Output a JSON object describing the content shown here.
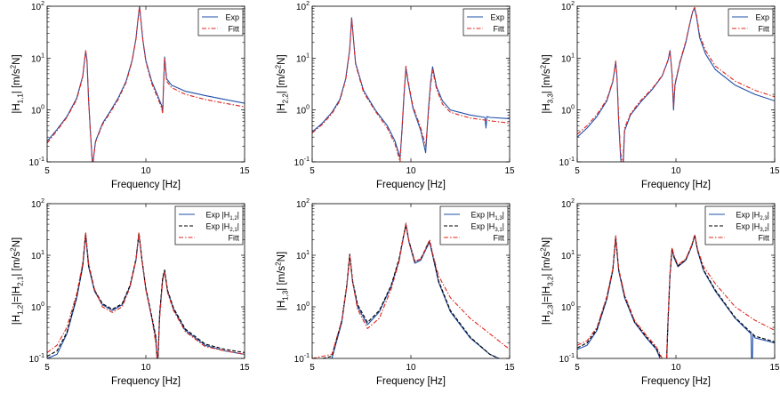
{
  "figure": {
    "x_axis_label": "Frequency [Hz]",
    "x_ticks": [
      5,
      10,
      15
    ],
    "y_ticks": [
      "10-1",
      "100",
      "101",
      "102"
    ]
  },
  "chart_data": [
    {
      "type": "line",
      "title": "",
      "xlabel": "Frequency [Hz]",
      "ylabel": "|H1,1| [m/s2N]",
      "xlim": [
        5,
        15
      ],
      "ylim": [
        0.1,
        100
      ],
      "yscale": "log",
      "grid": false,
      "legend_position": "top-right",
      "series": [
        {
          "name": "Exp",
          "color": "#1f4fa8",
          "dash": "solid",
          "x": [
            5,
            5.5,
            6,
            6.5,
            6.8,
            6.95,
            7.02,
            7.1,
            7.2,
            7.3,
            7.45,
            7.8,
            8.2,
            8.6,
            9,
            9.3,
            9.5,
            9.6,
            9.68,
            9.75,
            9.85,
            10,
            10.3,
            10.6,
            10.8,
            10.85,
            10.9,
            10.95,
            11.05,
            11.3,
            12,
            13,
            14,
            15
          ],
          "y": [
            0.25,
            0.42,
            0.75,
            1.7,
            4.5,
            13.5,
            9.0,
            1.6,
            0.35,
            0.085,
            0.25,
            0.55,
            0.95,
            1.7,
            3.6,
            9.0,
            24,
            55,
            100,
            55,
            22,
            9,
            3.5,
            1.9,
            1.2,
            0.9,
            3.5,
            10.5,
            4.0,
            3.0,
            2.3,
            1.9,
            1.6,
            1.35
          ]
        },
        {
          "name": "Fitt",
          "color": "#e0261c",
          "dash": "dashdot",
          "x": [
            5,
            5.5,
            6,
            6.5,
            6.8,
            6.95,
            7.02,
            7.1,
            7.2,
            7.3,
            7.45,
            7.8,
            8.2,
            8.6,
            9,
            9.3,
            9.5,
            9.6,
            9.68,
            9.75,
            9.85,
            10,
            10.3,
            10.6,
            10.8,
            10.85,
            10.9,
            10.95,
            11.05,
            11.3,
            12,
            13,
            14,
            15
          ],
          "y": [
            0.23,
            0.4,
            0.72,
            1.6,
            4.3,
            14,
            9.5,
            1.5,
            0.33,
            0.08,
            0.24,
            0.52,
            0.9,
            1.6,
            3.4,
            8.6,
            23,
            54,
            100,
            54,
            21,
            8.5,
            3.2,
            1.7,
            1.1,
            0.85,
            3.2,
            10.0,
            3.6,
            2.7,
            2.0,
            1.6,
            1.35,
            1.15
          ]
        }
      ]
    },
    {
      "type": "line",
      "title": "",
      "xlabel": "Frequency [Hz]",
      "ylabel": "|H2,2| [m/s2N]",
      "xlim": [
        5,
        15
      ],
      "ylim": [
        0.1,
        100
      ],
      "yscale": "log",
      "grid": false,
      "legend_position": "top-right",
      "series": [
        {
          "name": "Exp",
          "color": "#1f4fa8",
          "dash": "solid",
          "x": [
            5,
            5.5,
            6,
            6.4,
            6.7,
            6.9,
            7.0,
            7.2,
            7.6,
            8.2,
            8.8,
            9.2,
            9.45,
            9.55,
            9.65,
            9.75,
            9.85,
            10.1,
            10.5,
            10.75,
            10.9,
            11.0,
            11.1,
            11.3,
            11.6,
            12,
            13,
            13.75,
            13.8,
            13.85,
            14,
            15
          ],
          "y": [
            0.38,
            0.55,
            0.9,
            1.6,
            4,
            15,
            60,
            8,
            2.4,
            1.0,
            0.5,
            0.25,
            0.12,
            0.4,
            1.8,
            6.5,
            3.5,
            1.1,
            0.4,
            0.15,
            1.2,
            3.5,
            6.8,
            2.8,
            1.5,
            1.0,
            0.8,
            0.72,
            0.45,
            0.75,
            0.72,
            0.68
          ]
        },
        {
          "name": "Fitt",
          "color": "#e0261c",
          "dash": "dashdot",
          "x": [
            5,
            5.5,
            6,
            6.4,
            6.7,
            6.9,
            7.0,
            7.2,
            7.6,
            8.2,
            8.8,
            9.2,
            9.45,
            9.55,
            9.65,
            9.75,
            9.85,
            10.1,
            10.5,
            10.75,
            10.9,
            11.0,
            11.1,
            11.3,
            11.6,
            12,
            13,
            14,
            15
          ],
          "y": [
            0.36,
            0.52,
            0.85,
            1.5,
            3.8,
            14,
            58,
            7.5,
            2.2,
            0.95,
            0.45,
            0.22,
            0.1,
            0.45,
            2.0,
            7.0,
            3.8,
            1.2,
            0.45,
            0.2,
            1.0,
            3.0,
            6.0,
            2.5,
            1.3,
            0.9,
            0.7,
            0.62,
            0.56
          ]
        }
      ]
    },
    {
      "type": "line",
      "title": "",
      "xlabel": "Frequency [Hz]",
      "ylabel": "|H3,3| [m/s2N]",
      "xlim": [
        5,
        15
      ],
      "ylim": [
        0.1,
        100
      ],
      "yscale": "log",
      "grid": false,
      "legend_position": "top-right",
      "series": [
        {
          "name": "Exp",
          "color": "#1f4fa8",
          "dash": "solid",
          "x": [
            5,
            5.5,
            6,
            6.5,
            6.8,
            6.95,
            7.02,
            7.1,
            7.2,
            7.3,
            7.4,
            7.7,
            8.2,
            8.8,
            9.3,
            9.6,
            9.7,
            9.8,
            9.88,
            9.95,
            10.2,
            10.5,
            10.7,
            10.85,
            10.95,
            11.05,
            11.2,
            11.5,
            12,
            13,
            14,
            15
          ],
          "y": [
            0.3,
            0.45,
            0.75,
            1.5,
            3.5,
            8.5,
            4,
            0.6,
            0.12,
            0.05,
            0.4,
            0.8,
            1.4,
            2.5,
            4.5,
            9,
            14,
            5,
            1.0,
            3.0,
            8,
            20,
            45,
            80,
            90,
            60,
            25,
            12,
            6,
            3,
            2,
            1.5
          ]
        },
        {
          "name": "Fitt",
          "color": "#e0261c",
          "dash": "dashdot",
          "x": [
            5,
            5.5,
            6,
            6.5,
            6.8,
            6.95,
            7.02,
            7.1,
            7.2,
            7.3,
            7.4,
            7.7,
            8.2,
            8.8,
            9.3,
            9.6,
            9.7,
            9.8,
            9.88,
            9.95,
            10.2,
            10.5,
            10.7,
            10.85,
            10.95,
            11.05,
            11.2,
            11.5,
            12,
            13,
            14,
            15
          ],
          "y": [
            0.34,
            0.5,
            0.82,
            1.6,
            3.6,
            8.8,
            4.2,
            0.7,
            0.15,
            0.08,
            0.45,
            0.85,
            1.5,
            2.6,
            4.6,
            9.2,
            14,
            5.2,
            1.2,
            3.2,
            8.5,
            21,
            46,
            82,
            95,
            65,
            28,
            14,
            7,
            3.6,
            2.4,
            1.8
          ]
        }
      ]
    },
    {
      "type": "line",
      "title": "",
      "xlabel": "Frequency [Hz]",
      "ylabel": "|H1,2|=|H2,1| [m/s2N]",
      "xlim": [
        5,
        15
      ],
      "ylim": [
        0.1,
        100
      ],
      "yscale": "log",
      "grid": false,
      "legend_position": "top-right",
      "series": [
        {
          "name": "Exp |H1,2|",
          "color": "#1f4fa8",
          "dash": "solid",
          "x": [
            5,
            5.5,
            6,
            6.5,
            6.8,
            6.95,
            7.1,
            7.4,
            7.8,
            8.3,
            8.8,
            9.2,
            9.5,
            9.65,
            9.8,
            10.0,
            10.3,
            10.5,
            10.6,
            10.7,
            10.85,
            10.95,
            11.1,
            11.4,
            12,
            13,
            14,
            15
          ],
          "y": [
            0.1,
            0.12,
            0.3,
            1.5,
            6,
            25,
            6,
            2.0,
            1.1,
            0.85,
            1.1,
            2.5,
            8,
            26,
            8,
            2.2,
            0.6,
            0.25,
            0.06,
            0.7,
            3.5,
            5,
            2.0,
            0.9,
            0.35,
            0.18,
            0.14,
            0.12
          ]
        },
        {
          "name": "Exp |H2,1|",
          "color": "#000000",
          "dash": "dashed",
          "x": [
            5,
            5.5,
            6,
            6.5,
            6.8,
            6.95,
            7.1,
            7.4,
            7.8,
            8.3,
            8.8,
            9.2,
            9.5,
            9.65,
            9.8,
            10.0,
            10.3,
            10.5,
            10.6,
            10.7,
            10.85,
            10.95,
            11.1,
            11.4,
            12,
            13,
            14,
            15
          ],
          "y": [
            0.11,
            0.14,
            0.32,
            1.6,
            6.5,
            27,
            6.5,
            2.1,
            1.15,
            0.9,
            1.15,
            2.6,
            8.5,
            27,
            8.4,
            2.3,
            0.65,
            0.27,
            0.07,
            0.75,
            3.7,
            5.2,
            2.1,
            0.95,
            0.37,
            0.19,
            0.15,
            0.13
          ]
        },
        {
          "name": "Fitt",
          "color": "#e0261c",
          "dash": "dashdot",
          "x": [
            5,
            5.5,
            6,
            6.5,
            6.8,
            6.95,
            7.1,
            7.4,
            7.8,
            8.3,
            8.8,
            9.2,
            9.5,
            9.65,
            9.8,
            10.0,
            10.3,
            10.5,
            10.6,
            10.7,
            10.85,
            10.95,
            11.1,
            11.4,
            12,
            13,
            14,
            15
          ],
          "y": [
            0.13,
            0.18,
            0.4,
            1.8,
            7,
            28,
            7,
            2.2,
            1.0,
            0.78,
            1.0,
            2.4,
            8,
            28,
            8,
            2.1,
            0.6,
            0.2,
            0.08,
            0.6,
            3.2,
            4.8,
            1.9,
            0.85,
            0.33,
            0.17,
            0.14,
            0.12
          ]
        }
      ]
    },
    {
      "type": "line",
      "title": "",
      "xlabel": "Frequency [Hz]",
      "ylabel": "|H1,3| [m/s2N]",
      "xlim": [
        5,
        15
      ],
      "ylim": [
        0.1,
        100
      ],
      "yscale": "log",
      "grid": false,
      "legend_position": "top-right",
      "series": [
        {
          "name": "Exp |H1,3|",
          "color": "#1f4fa8",
          "dash": "solid",
          "x": [
            5,
            6,
            6.5,
            6.75,
            6.9,
            7.05,
            7.3,
            7.8,
            8.4,
            9.0,
            9.4,
            9.6,
            9.75,
            9.9,
            10.2,
            10.5,
            10.8,
            10.95,
            11.1,
            11.4,
            12,
            13,
            14,
            15
          ],
          "y": [
            0.08,
            0.1,
            0.5,
            2.5,
            10,
            3,
            1.0,
            0.45,
            0.8,
            2.5,
            8,
            20,
            40,
            18,
            7,
            8,
            14,
            18,
            10,
            3,
            0.8,
            0.25,
            0.12,
            0.08
          ]
        },
        {
          "name": "Exp |H3,1|",
          "color": "#000000",
          "dash": "dashed",
          "x": [
            5,
            6,
            6.5,
            6.75,
            6.9,
            7.05,
            7.3,
            7.8,
            8.4,
            9.0,
            9.4,
            9.6,
            9.75,
            9.9,
            10.2,
            10.5,
            10.8,
            10.95,
            11.1,
            11.4,
            12,
            13,
            14,
            15
          ],
          "y": [
            0.09,
            0.11,
            0.55,
            2.6,
            10.5,
            3.2,
            1.1,
            0.5,
            0.85,
            2.6,
            8.5,
            21,
            38,
            19,
            7.5,
            8.5,
            15,
            19,
            10.5,
            3.2,
            0.85,
            0.26,
            0.12,
            0.08
          ]
        },
        {
          "name": "Fitt",
          "color": "#e0261c",
          "dash": "dashdot",
          "x": [
            5,
            6,
            6.5,
            6.75,
            6.9,
            7.05,
            7.3,
            7.8,
            8.4,
            9.0,
            9.4,
            9.6,
            9.75,
            9.9,
            10.2,
            10.5,
            10.8,
            10.95,
            11.1,
            11.4,
            12,
            13,
            14,
            15
          ],
          "y": [
            0.1,
            0.12,
            0.55,
            2.5,
            10,
            3,
            0.9,
            0.38,
            0.6,
            2.2,
            7.5,
            20,
            42,
            19,
            7.5,
            8.5,
            15,
            20,
            11,
            4,
            1.5,
            0.6,
            0.3,
            0.15
          ]
        }
      ]
    },
    {
      "type": "line",
      "title": "",
      "xlabel": "Frequency [Hz]",
      "ylabel": "|H2,3|=|H3,2| [m/s2N]",
      "xlim": [
        5,
        15
      ],
      "ylim": [
        0.1,
        100
      ],
      "yscale": "log",
      "grid": false,
      "legend_position": "top-right",
      "series": [
        {
          "name": "Exp |H2,3|",
          "color": "#1f4fa8",
          "dash": "solid",
          "x": [
            5,
            5.5,
            6,
            6.5,
            6.8,
            6.95,
            7.1,
            7.4,
            7.9,
            8.5,
            9.0,
            9.3,
            9.5,
            9.6,
            9.7,
            9.8,
            9.9,
            10.1,
            10.5,
            10.8,
            10.95,
            11.1,
            11.4,
            12,
            13,
            13.8,
            13.85,
            13.9,
            14,
            15
          ],
          "y": [
            0.15,
            0.18,
            0.35,
            1.4,
            5,
            22,
            5,
            1.5,
            0.5,
            0.25,
            0.15,
            0.08,
            0.04,
            0.5,
            4,
            13,
            9,
            6,
            8,
            15,
            24,
            12,
            5,
            2,
            0.6,
            0.3,
            0.05,
            0.3,
            0.25,
            0.2
          ]
        },
        {
          "name": "Exp |H3,2|",
          "color": "#000000",
          "dash": "dashed",
          "x": [
            5,
            5.5,
            6,
            6.5,
            6.8,
            6.95,
            7.1,
            7.4,
            7.9,
            8.5,
            9.0,
            9.3,
            9.5,
            9.6,
            9.7,
            9.8,
            9.9,
            10.1,
            10.5,
            10.8,
            10.95,
            11.1,
            11.4,
            12,
            13,
            14,
            15
          ],
          "y": [
            0.16,
            0.2,
            0.37,
            1.5,
            5.3,
            23,
            5.3,
            1.6,
            0.52,
            0.26,
            0.16,
            0.09,
            0.05,
            0.55,
            4.2,
            13.5,
            9.5,
            6.2,
            8.2,
            15.5,
            25,
            12.5,
            5.2,
            2.1,
            0.62,
            0.27,
            0.21
          ]
        },
        {
          "name": "Fitt",
          "color": "#e0261c",
          "dash": "dashdot",
          "x": [
            5,
            5.5,
            6,
            6.5,
            6.8,
            6.95,
            7.1,
            7.4,
            7.9,
            8.5,
            9.0,
            9.3,
            9.5,
            9.6,
            9.7,
            9.8,
            9.9,
            10.1,
            10.5,
            10.8,
            10.95,
            11.1,
            11.4,
            12,
            13,
            14,
            15
          ],
          "y": [
            0.18,
            0.22,
            0.4,
            1.6,
            5.5,
            24,
            5.5,
            1.7,
            0.55,
            0.28,
            0.17,
            0.1,
            0.06,
            0.6,
            4.5,
            14,
            10,
            6.5,
            8.5,
            16,
            25,
            13,
            6,
            2.8,
            1.0,
            0.55,
            0.35
          ]
        }
      ]
    }
  ]
}
